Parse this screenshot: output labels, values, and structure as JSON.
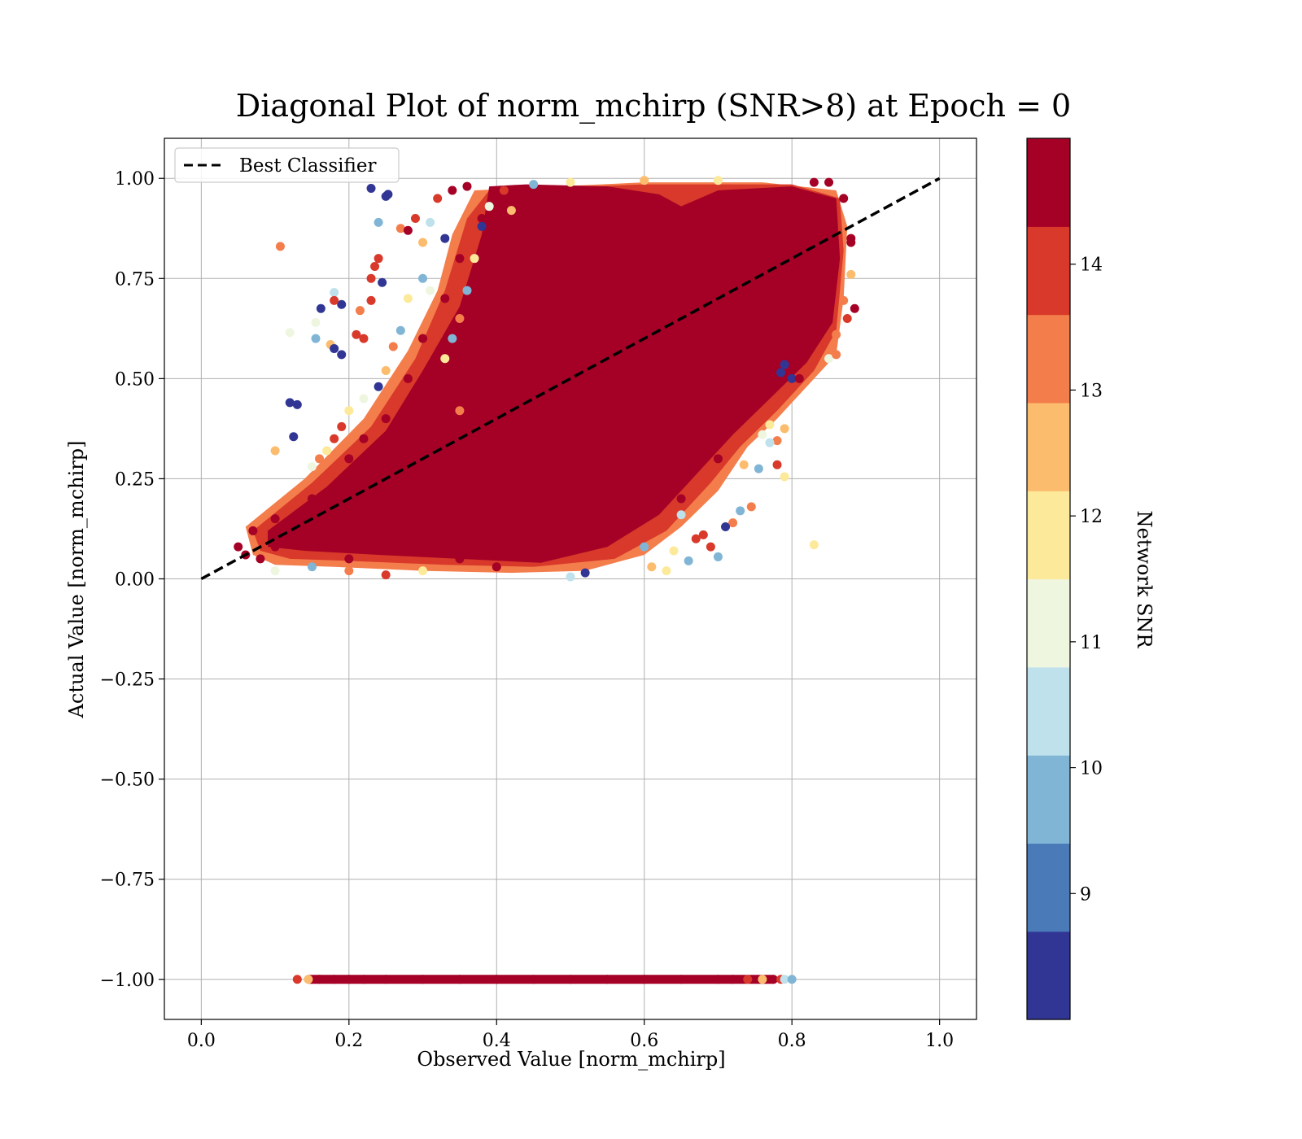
{
  "chart_data": {
    "type": "scatter",
    "title": "Diagonal Plot of norm_mchirp (SNR>8) at Epoch = 0",
    "xlabel": "Observed Value [norm_mchirp]",
    "ylabel": "Actual Value [norm_mchirp]",
    "xlim": [
      -0.05,
      1.05
    ],
    "ylim": [
      -1.1,
      1.1
    ],
    "x_ticks": [
      0.0,
      0.2,
      0.4,
      0.6,
      0.8,
      1.0
    ],
    "x_tick_labels": [
      "0.0",
      "0.2",
      "0.4",
      "0.6",
      "0.8",
      "1.0"
    ],
    "y_ticks": [
      1.0,
      0.75,
      0.5,
      0.25,
      0.0,
      -0.25,
      -0.5,
      -0.75,
      -1.0
    ],
    "y_tick_labels": [
      "1.00",
      "0.75",
      "0.50",
      "0.25",
      "0.00",
      "−0.25",
      "−0.50",
      "−0.75",
      "−1.00"
    ],
    "grid": true,
    "legend": {
      "placement": "top-left",
      "entries": [
        "Best Classifier"
      ]
    },
    "reference_line": {
      "name": "Best Classifier",
      "x": [
        0.0,
        1.0
      ],
      "y": [
        0.0,
        1.0
      ],
      "style": "dashed",
      "color": "#000000"
    },
    "colorbar": {
      "label": "Network SNR",
      "range": [
        8,
        15
      ],
      "ticks": [
        9,
        10,
        11,
        12,
        13,
        14
      ],
      "tick_labels": [
        "9",
        "10",
        "11",
        "12",
        "13",
        "14"
      ],
      "colors": [
        "#313695",
        "#4a7ab7",
        "#81b5d5",
        "#bfe1ec",
        "#eef6e0",
        "#fde99a",
        "#fcbc6e",
        "#f47d4c",
        "#d8392a",
        "#a50026"
      ]
    },
    "series": [
      {
        "name": "",
        "points": [
          [
            0.05,
            0.08,
            15
          ],
          [
            0.06,
            0.06,
            15
          ],
          [
            0.08,
            0.05,
            15
          ],
          [
            0.1,
            0.08,
            15
          ],
          [
            0.07,
            0.12,
            15
          ],
          [
            0.1,
            0.15,
            15
          ],
          [
            0.12,
            0.1,
            15
          ],
          [
            0.15,
            0.2,
            15
          ],
          [
            0.18,
            0.22,
            15
          ],
          [
            0.2,
            0.3,
            15
          ],
          [
            0.22,
            0.35,
            15
          ],
          [
            0.25,
            0.4,
            15
          ],
          [
            0.28,
            0.5,
            15
          ],
          [
            0.3,
            0.6,
            15
          ],
          [
            0.33,
            0.7,
            15
          ],
          [
            0.35,
            0.8,
            15
          ],
          [
            0.38,
            0.9,
            15
          ],
          [
            0.4,
            0.95,
            15
          ],
          [
            0.45,
            0.9,
            15
          ],
          [
            0.5,
            0.85,
            15
          ],
          [
            0.55,
            0.7,
            15
          ],
          [
            0.6,
            0.6,
            15
          ],
          [
            0.65,
            0.55,
            15
          ],
          [
            0.7,
            0.6,
            15
          ],
          [
            0.75,
            0.7,
            15
          ],
          [
            0.8,
            0.8,
            15
          ],
          [
            0.85,
            0.9,
            15
          ],
          [
            0.88,
            0.85,
            15
          ],
          [
            0.3,
            0.1,
            15
          ],
          [
            0.35,
            0.05,
            15
          ],
          [
            0.4,
            0.03,
            15
          ],
          [
            0.45,
            0.1,
            15
          ],
          [
            0.5,
            0.2,
            15
          ],
          [
            0.55,
            0.25,
            15
          ],
          [
            0.6,
            0.3,
            15
          ],
          [
            0.65,
            0.2,
            15
          ],
          [
            0.7,
            0.3,
            15
          ],
          [
            0.75,
            0.45,
            15
          ],
          [
            0.25,
            0.15,
            15
          ],
          [
            0.2,
            0.05,
            15
          ],
          [
            0.107,
            0.83,
            13.5
          ],
          [
            0.12,
            0.44,
            8.2
          ],
          [
            0.13,
            0.435,
            8.2
          ],
          [
            0.125,
            0.355,
            8.2
          ],
          [
            0.23,
            0.975,
            8.2
          ],
          [
            0.253,
            0.96,
            8.2
          ],
          [
            0.25,
            0.955,
            8.2
          ],
          [
            0.1,
            0.32,
            12.5
          ],
          [
            0.155,
            0.64,
            11.2
          ],
          [
            0.12,
            0.615,
            11.2
          ],
          [
            0.155,
            0.6,
            10
          ],
          [
            0.162,
            0.675,
            8.2
          ],
          [
            0.18,
            0.715,
            10.5
          ],
          [
            0.19,
            0.685,
            8.2
          ],
          [
            0.18,
            0.695,
            13.8
          ],
          [
            0.175,
            0.585,
            12.5
          ],
          [
            0.18,
            0.575,
            8.2
          ],
          [
            0.19,
            0.56,
            8.2
          ],
          [
            0.215,
            0.67,
            13
          ],
          [
            0.21,
            0.61,
            13.8
          ],
          [
            0.22,
            0.6,
            13.8
          ],
          [
            0.23,
            0.695,
            13.8
          ],
          [
            0.23,
            0.75,
            14
          ],
          [
            0.245,
            0.74,
            8.2
          ],
          [
            0.235,
            0.78,
            13.8
          ],
          [
            0.24,
            0.8,
            13.8
          ],
          [
            0.24,
            0.89,
            9.5
          ],
          [
            0.27,
            0.875,
            13.5
          ],
          [
            0.28,
            0.87,
            15
          ],
          [
            0.29,
            0.9,
            13.8
          ],
          [
            0.785,
            0.515,
            8.2
          ],
          [
            0.79,
            0.535,
            8.2
          ],
          [
            0.8,
            0.5,
            8.2
          ],
          [
            0.81,
            0.5,
            15
          ],
          [
            0.77,
            0.385,
            12
          ],
          [
            0.78,
            0.345,
            13
          ],
          [
            0.79,
            0.375,
            12.5
          ],
          [
            0.76,
            0.36,
            11
          ],
          [
            0.77,
            0.34,
            10.5
          ],
          [
            0.755,
            0.275,
            10
          ],
          [
            0.735,
            0.285,
            12.5
          ],
          [
            0.78,
            0.285,
            13.8
          ],
          [
            0.745,
            0.18,
            13.5
          ],
          [
            0.79,
            0.255,
            11.5
          ],
          [
            0.83,
            0.085,
            12
          ],
          [
            0.7,
            0.055,
            9.5
          ],
          [
            0.72,
            0.14,
            13
          ],
          [
            0.71,
            0.13,
            8.2
          ],
          [
            0.73,
            0.17,
            9.5
          ],
          [
            0.69,
            0.08,
            13.8
          ],
          [
            0.67,
            0.1,
            13.8
          ],
          [
            0.65,
            0.16,
            10.5
          ],
          [
            0.63,
            0.02,
            11.5
          ],
          [
            0.61,
            0.03,
            12.5
          ],
          [
            0.6,
            0.08,
            9.5
          ],
          [
            0.64,
            0.07,
            12
          ],
          [
            0.68,
            0.11,
            13.8
          ],
          [
            0.66,
            0.045,
            10
          ],
          [
            0.52,
            0.015,
            8.2
          ],
          [
            0.5,
            0.005,
            10.5
          ],
          [
            0.3,
            0.02,
            12
          ],
          [
            0.25,
            0.01,
            13.8
          ],
          [
            0.2,
            0.02,
            13
          ],
          [
            0.15,
            0.03,
            10
          ],
          [
            0.1,
            0.02,
            11
          ],
          [
            0.87,
            0.95,
            15
          ],
          [
            0.88,
            0.84,
            15
          ],
          [
            0.885,
            0.675,
            15
          ],
          [
            0.875,
            0.65,
            13.8
          ],
          [
            0.87,
            0.695,
            13.5
          ],
          [
            0.86,
            0.61,
            13.5
          ],
          [
            0.85,
            0.55,
            11
          ],
          [
            0.86,
            0.56,
            13
          ],
          [
            0.88,
            0.76,
            12.5
          ],
          [
            0.83,
            0.99,
            15
          ],
          [
            0.85,
            0.99,
            15
          ],
          [
            0.7,
            0.995,
            12
          ],
          [
            0.6,
            0.995,
            12.5
          ],
          [
            0.5,
            0.99,
            11.5
          ],
          [
            0.45,
            0.985,
            9.5
          ],
          [
            0.32,
            0.95,
            13.8
          ],
          [
            0.34,
            0.97,
            15
          ],
          [
            0.36,
            0.98,
            15
          ],
          [
            0.31,
            0.89,
            10.5
          ],
          [
            0.3,
            0.84,
            12.5
          ],
          [
            0.33,
            0.85,
            8.2
          ],
          [
            0.3,
            0.75,
            9.5
          ],
          [
            0.31,
            0.72,
            11
          ],
          [
            0.28,
            0.7,
            12
          ],
          [
            0.27,
            0.62,
            10
          ],
          [
            0.26,
            0.58,
            13.5
          ],
          [
            0.25,
            0.52,
            12.5
          ],
          [
            0.24,
            0.48,
            8.2
          ],
          [
            0.22,
            0.45,
            11
          ],
          [
            0.2,
            0.42,
            12
          ],
          [
            0.19,
            0.38,
            13.8
          ],
          [
            0.18,
            0.35,
            13.8
          ],
          [
            0.17,
            0.32,
            12
          ],
          [
            0.16,
            0.3,
            13.5
          ],
          [
            0.15,
            0.28,
            11
          ],
          [
            0.34,
            0.6,
            9.5
          ],
          [
            0.35,
            0.65,
            13
          ],
          [
            0.33,
            0.55,
            11.5
          ],
          [
            0.36,
            0.72,
            10
          ],
          [
            0.37,
            0.8,
            12
          ],
          [
            0.38,
            0.88,
            8.2
          ],
          [
            0.39,
            0.93,
            11
          ],
          [
            0.41,
            0.97,
            13.8
          ],
          [
            0.42,
            0.92,
            12.5
          ],
          [
            0.35,
            0.42,
            13
          ]
        ]
      },
      {
        "name": "",
        "points": [
          [
            0.13,
            -1.0,
            13.8
          ],
          [
            0.145,
            -1.0,
            12.5
          ],
          [
            0.16,
            -1.0,
            15
          ],
          [
            0.18,
            -1.0,
            15
          ],
          [
            0.2,
            -1.0,
            15
          ],
          [
            0.22,
            -1.0,
            15
          ],
          [
            0.25,
            -1.0,
            15
          ],
          [
            0.3,
            -1.0,
            15
          ],
          [
            0.35,
            -1.0,
            15
          ],
          [
            0.4,
            -1.0,
            15
          ],
          [
            0.45,
            -1.0,
            15
          ],
          [
            0.5,
            -1.0,
            15
          ],
          [
            0.55,
            -1.0,
            15
          ],
          [
            0.6,
            -1.0,
            15
          ],
          [
            0.65,
            -1.0,
            15
          ],
          [
            0.7,
            -1.0,
            15
          ],
          [
            0.72,
            -1.0,
            15
          ],
          [
            0.74,
            -1.0,
            13.8
          ],
          [
            0.76,
            -1.0,
            12.5
          ],
          [
            0.775,
            -1.0,
            15
          ],
          [
            0.785,
            -1.0,
            13.8
          ],
          [
            0.79,
            -1.0,
            10.5
          ],
          [
            0.8,
            -1.0,
            9.5
          ]
        ]
      }
    ]
  }
}
